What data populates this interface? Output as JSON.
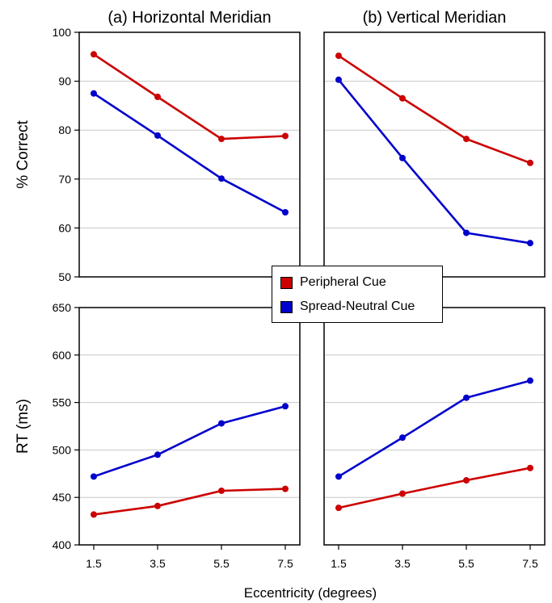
{
  "figure": {
    "xlabel": "Eccentricity (degrees)"
  },
  "legend": {
    "items": [
      {
        "label": "Peripheral Cue",
        "color": "#cc0000"
      },
      {
        "label": "Spread-Neutral Cue",
        "color": "#0000cc"
      }
    ]
  },
  "chart_data": [
    {
      "type": "line",
      "title": "(a) Horizontal Meridian",
      "ylabel": "% Correct",
      "xlabel": "",
      "x": [
        1.5,
        3.5,
        5.5,
        7.5
      ],
      "x_ticks": [
        "1.5",
        "3.5",
        "5.5",
        "7.5"
      ],
      "ylim": [
        50,
        100
      ],
      "y_ticks": [
        50,
        60,
        70,
        80,
        90,
        100
      ],
      "grid": true,
      "series": [
        {
          "name": "Peripheral Cue",
          "color": "#cc0000",
          "values": [
            95.5,
            86.8,
            78.2,
            78.8
          ]
        },
        {
          "name": "Spread-Neutral Cue",
          "color": "#0000cc",
          "values": [
            87.5,
            78.9,
            70.1,
            63.2
          ]
        }
      ]
    },
    {
      "type": "line",
      "title": "(b) Vertical Meridian",
      "ylabel": "",
      "xlabel": "",
      "x": [
        1.5,
        3.5,
        5.5,
        7.5
      ],
      "x_ticks": [
        "1.5",
        "3.5",
        "5.5",
        "7.5"
      ],
      "ylim": [
        50,
        100
      ],
      "y_ticks": [
        50,
        60,
        70,
        80,
        90,
        100
      ],
      "grid": true,
      "series": [
        {
          "name": "Peripheral Cue",
          "color": "#cc0000",
          "values": [
            95.2,
            86.5,
            78.2,
            73.3
          ]
        },
        {
          "name": "Spread-Neutral Cue",
          "color": "#0000cc",
          "values": [
            90.3,
            74.3,
            59.0,
            56.9
          ]
        }
      ]
    },
    {
      "type": "line",
      "title": "",
      "ylabel": "RT (ms)",
      "xlabel": "",
      "x": [
        1.5,
        3.5,
        5.5,
        7.5
      ],
      "x_ticks": [
        "1.5",
        "3.5",
        "5.5",
        "7.5"
      ],
      "ylim": [
        400,
        650
      ],
      "y_ticks": [
        400,
        450,
        500,
        550,
        600,
        650
      ],
      "grid": true,
      "series": [
        {
          "name": "Peripheral Cue",
          "color": "#cc0000",
          "values": [
            432,
            441,
            457,
            459
          ]
        },
        {
          "name": "Spread-Neutral Cue",
          "color": "#0000cc",
          "values": [
            472,
            495,
            528,
            546
          ]
        }
      ]
    },
    {
      "type": "line",
      "title": "",
      "ylabel": "",
      "xlabel": "",
      "x": [
        1.5,
        3.5,
        5.5,
        7.5
      ],
      "x_ticks": [
        "1.5",
        "3.5",
        "5.5",
        "7.5"
      ],
      "ylim": [
        400,
        650
      ],
      "y_ticks": [
        400,
        450,
        500,
        550,
        600,
        650
      ],
      "grid": true,
      "series": [
        {
          "name": "Peripheral Cue",
          "color": "#cc0000",
          "values": [
            439,
            454,
            468,
            481
          ]
        },
        {
          "name": "Spread-Neutral Cue",
          "color": "#0000cc",
          "values": [
            472,
            513,
            555,
            573
          ]
        }
      ]
    }
  ]
}
